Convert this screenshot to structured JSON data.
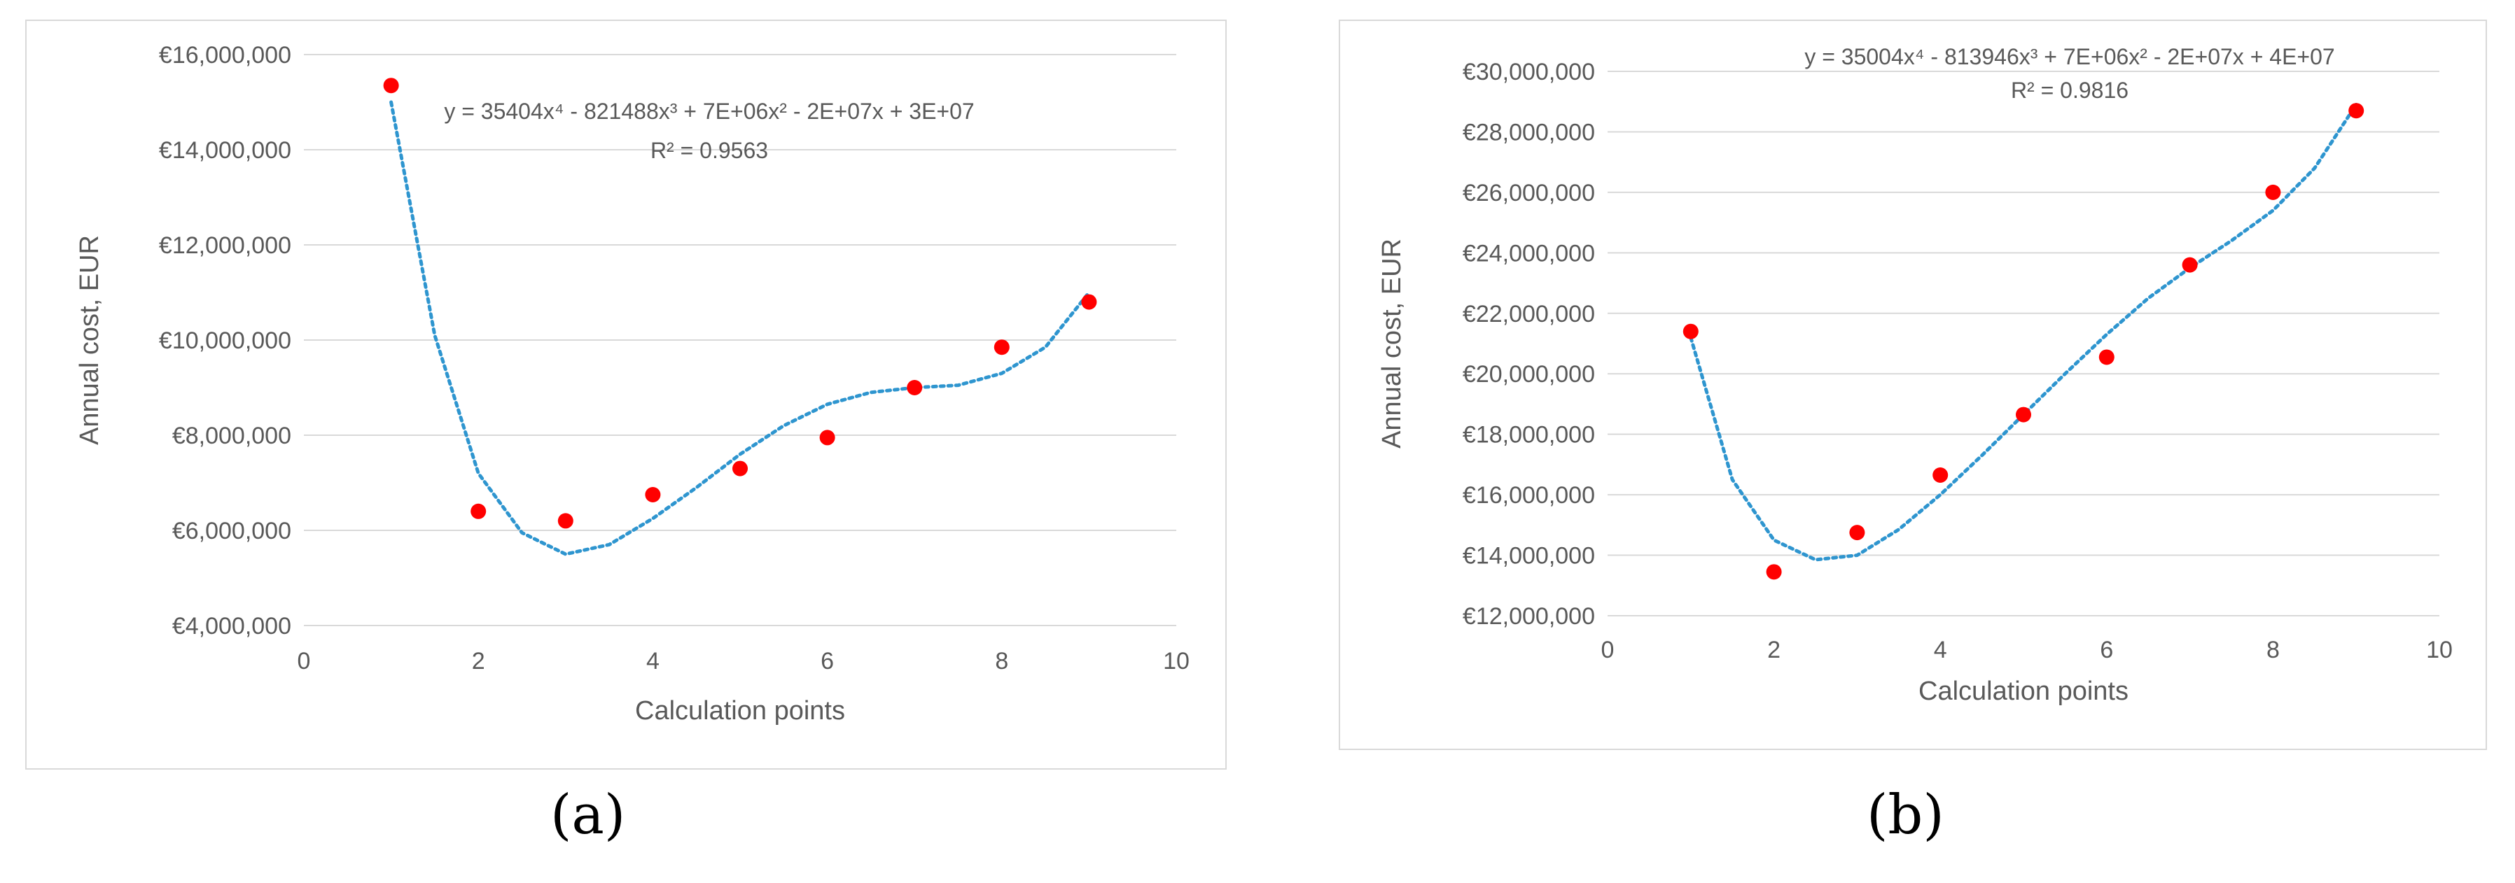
{
  "chart_data": [
    {
      "type": "scatter",
      "panel_label": "(a)",
      "xlabel": "Calculation points",
      "ylabel": "Annual cost, EUR",
      "xlim": [
        0,
        10
      ],
      "ylim": [
        4000000,
        16000000
      ],
      "x_ticks": [
        "0",
        "2",
        "4",
        "6",
        "8",
        "10"
      ],
      "y_ticks": [
        "€4,000,000",
        "€6,000,000",
        "€8,000,000",
        "€10,000,000",
        "€12,000,000",
        "€14,000,000",
        "€16,000,000"
      ],
      "grid": true,
      "points": {
        "x": [
          1,
          2,
          3,
          4,
          5,
          6,
          7,
          8,
          9
        ],
        "y": [
          15350000,
          6400000,
          6200000,
          6750000,
          7300000,
          7950000,
          9000000,
          9850000,
          10800000
        ]
      },
      "trendline": {
        "type": "polynomial",
        "order": 4,
        "style": "dotted",
        "equation": "y = 35404x⁴ - 821488x³ + 7E+06x² - 2E+07x + 3E+07",
        "r2": "R² = 0.9563",
        "x": [
          1,
          1.5,
          2,
          2.5,
          3,
          3.5,
          4,
          4.5,
          5,
          5.5,
          6,
          6.5,
          7,
          7.5,
          8,
          8.5,
          9
        ],
        "y": [
          15000000,
          10100000,
          7200000,
          5950000,
          5500000,
          5700000,
          6250000,
          6900000,
          7600000,
          8200000,
          8650000,
          8900000,
          9000000,
          9050000,
          9300000,
          9850000,
          11000000
        ]
      },
      "colors": {
        "points": "#ff0000",
        "trendline": "#2e95cf",
        "grid": "#d9d9d9"
      }
    },
    {
      "type": "scatter",
      "panel_label": "(b)",
      "xlabel": "Calculation points",
      "ylabel": "Annual cost, EUR",
      "xlim": [
        0,
        10
      ],
      "ylim": [
        12000000,
        30000000
      ],
      "x_ticks": [
        "0",
        "2",
        "4",
        "6",
        "8",
        "10"
      ],
      "y_ticks": [
        "€12,000,000",
        "€14,000,000",
        "€16,000,000",
        "€18,000,000",
        "€20,000,000",
        "€22,000,000",
        "€24,000,000",
        "€26,000,000",
        "€28,000,000",
        "€30,000,000"
      ],
      "grid": true,
      "points": {
        "x": [
          1,
          2,
          3,
          4,
          5,
          6,
          7,
          8,
          9
        ],
        "y": [
          21400000,
          13450000,
          14750000,
          16650000,
          18650000,
          20550000,
          23600000,
          26000000,
          28700000
        ]
      },
      "trendline": {
        "type": "polynomial",
        "order": 4,
        "style": "dotted",
        "equation": "y = 35004x⁴ - 813946x³ + 7E+06x² - 2E+07x + 4E+07",
        "r2": "R² = 0.9816",
        "x": [
          1,
          1.5,
          2,
          2.5,
          3,
          3.5,
          4,
          4.5,
          5,
          5.5,
          6,
          6.5,
          7,
          7.5,
          8,
          8.5,
          9
        ],
        "y": [
          21200000,
          16500000,
          14500000,
          13850000,
          14000000,
          14850000,
          16000000,
          17300000,
          18650000,
          20000000,
          21300000,
          22500000,
          23500000,
          24400000,
          25400000,
          26800000,
          28900000
        ]
      },
      "colors": {
        "points": "#ff0000",
        "trendline": "#2e95cf",
        "grid": "#d9d9d9"
      }
    }
  ]
}
